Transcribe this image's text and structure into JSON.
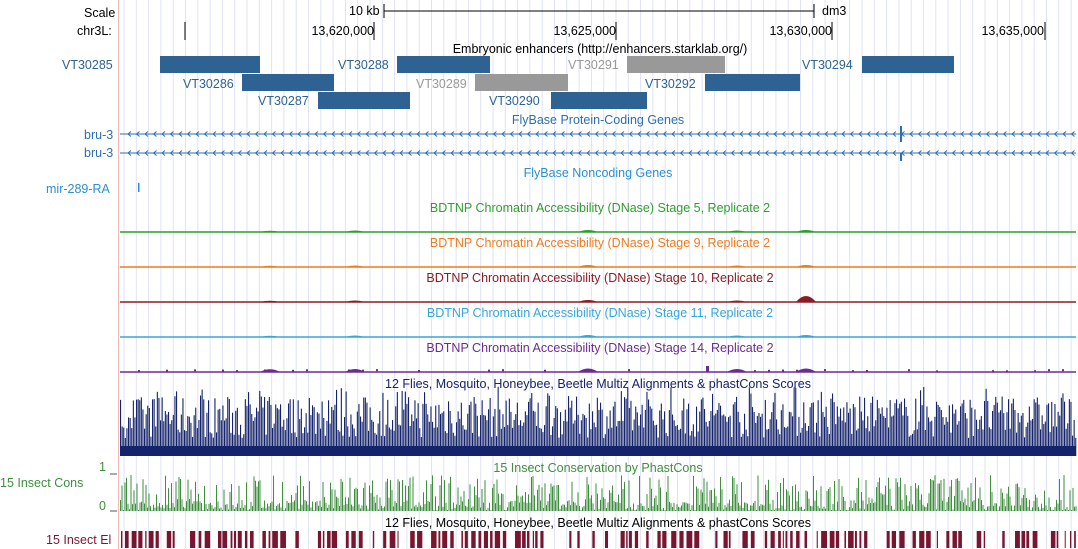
{
  "ruler": {
    "scale_label": "Scale",
    "chrom_label": "chr3L:",
    "scale_text": "10 kb",
    "assembly": "dm3",
    "ticks": [
      "13,620,000",
      "13,625,000",
      "13,630,000",
      "13,635,000"
    ]
  },
  "enhancers": {
    "title": "Embryonic enhancers (http://enhancers.starklab.org/)",
    "color": "#2e6293",
    "grey": "#999999",
    "items": [
      {
        "name": "VT30285",
        "grey": false
      },
      {
        "name": "VT30286",
        "grey": false
      },
      {
        "name": "VT30287",
        "grey": false
      },
      {
        "name": "VT30288",
        "grey": false
      },
      {
        "name": "VT30289",
        "grey": true
      },
      {
        "name": "VT30290",
        "grey": false
      },
      {
        "name": "VT30291",
        "grey": true
      },
      {
        "name": "VT30292",
        "grey": false
      },
      {
        "name": "VT30294",
        "grey": false
      }
    ]
  },
  "coding_genes": {
    "title": "FlyBase Protein-Coding Genes",
    "color": "#2c6fb0",
    "genes": [
      "bru-3",
      "bru-3"
    ]
  },
  "noncoding_genes": {
    "title": "FlyBase Noncoding Genes",
    "color": "#2c8fcf",
    "genes": [
      "mir-289-RA"
    ]
  },
  "dnase_tracks": [
    {
      "title": "BDTNP Chromatin Accessibility (DNase) Stage 5, Replicate 2",
      "color": "#2f9e2f"
    },
    {
      "title": "BDTNP Chromatin Accessibility (DNase) Stage 9, Replicate 2",
      "color": "#f07a1e"
    },
    {
      "title": "BDTNP Chromatin Accessibility (DNase) Stage 10, Replicate 2",
      "color": "#8b1c24"
    },
    {
      "title": "BDTNP Chromatin Accessibility (DNase) Stage 11, Replicate 2",
      "color": "#3aa6d8"
    },
    {
      "title": "BDTNP Chromatin Accessibility (DNase) Stage 14, Replicate 2",
      "color": "#6a2c8f"
    }
  ],
  "multiz": {
    "title": "12 Flies, Mosquito, Honeybee, Beetle Multiz Alignments & phastCons Scores",
    "color": "#14236b"
  },
  "insect_cons": {
    "title": "15 Insect Conservation by PhastCons",
    "label": "15 Insect Cons",
    "ymax": "1",
    "ymin": "0",
    "color": "#3f8f3f"
  },
  "insect_el": {
    "title": "12 Flies, Mosquito, Honeybee, Beetle Multiz Alignments & phastCons Scores",
    "label": "15 Insect El",
    "color": "#7a1530"
  }
}
